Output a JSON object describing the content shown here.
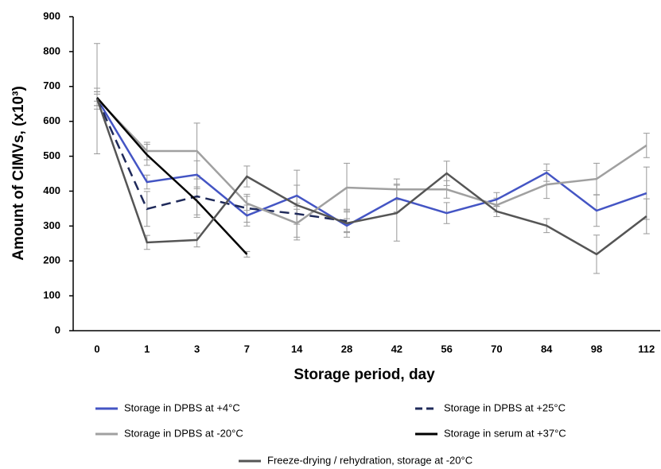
{
  "chart_data": {
    "type": "line",
    "x_label": "Storage period, day",
    "y_label": "Amount of CIMVs, (x10³)",
    "categories": [
      "0",
      "1",
      "3",
      "7",
      "14",
      "28",
      "42",
      "56",
      "70",
      "84",
      "98",
      "112"
    ],
    "ylim": [
      0,
      900
    ],
    "yticks": [
      0,
      100,
      200,
      300,
      400,
      500,
      600,
      700,
      800,
      900
    ],
    "series": [
      {
        "name": "Storage in DPBS at +4°C",
        "color": "#4455c4",
        "line_style": "solid",
        "values": [
          665,
          426,
          447,
          330,
          387,
          301,
          380,
          337,
          376,
          453,
          344,
          394
        ],
        "errors": [
          30,
          20,
          40,
          30,
          30,
          20,
          40,
          30,
          20,
          25,
          45,
          75
        ]
      },
      {
        "name": "Storage in DPBS at +25°C",
        "color": "#1f2a5a",
        "line_style": "dashed",
        "values": [
          665,
          349,
          385,
          351,
          335,
          314,
          null,
          null,
          null,
          null,
          null,
          null
        ],
        "errors": [
          20,
          50,
          60,
          40,
          30,
          30,
          null,
          null,
          null,
          null,
          null,
          null
        ]
      },
      {
        "name": "Storage in DPBS at -20°C",
        "color": "#a0a0a0",
        "line_style": "solid",
        "values": [
          665,
          515,
          515,
          365,
          308,
          410,
          405,
          405,
          360,
          419,
          435,
          531
        ],
        "errors": [
          158,
          25,
          80,
          20,
          40,
          70,
          30,
          25,
          20,
          40,
          45,
          35
        ]
      },
      {
        "name": "Storage in serum at +37°C",
        "color": "#000000",
        "line_style": "solid",
        "values": [
          668,
          504,
          372,
          219,
          null,
          null,
          null,
          null,
          null,
          null,
          null,
          null
        ],
        "errors": [
          10,
          30,
          40,
          8,
          null,
          null,
          null,
          null,
          null,
          null,
          null,
          null
        ]
      },
      {
        "name": "Freeze-drying / rehydration, storage at -20°C",
        "color": "#555555",
        "line_style": "solid",
        "values": [
          665,
          253,
          260,
          442,
          360,
          308,
          337,
          451,
          342,
          301,
          219,
          328
        ],
        "errors": [
          20,
          20,
          20,
          30,
          100,
          40,
          80,
          35,
          15,
          20,
          55,
          50
        ]
      }
    ]
  }
}
